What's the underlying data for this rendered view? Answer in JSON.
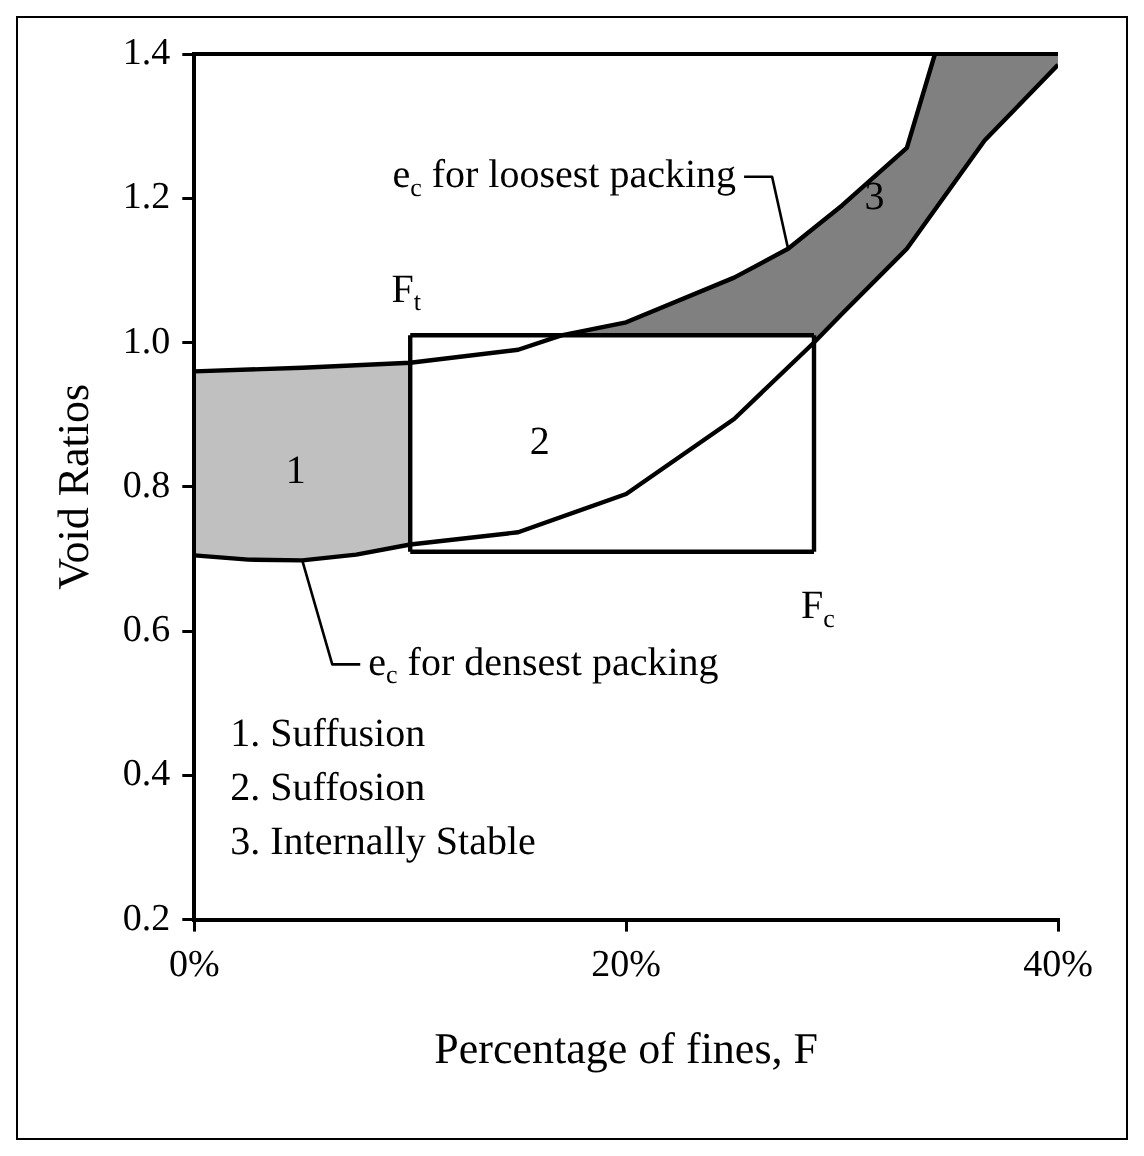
{
  "chart_data": {
    "type": "line",
    "xlabel": "Percentage of fines, F",
    "ylabel": "Void Ratios",
    "xlim": [
      0,
      40
    ],
    "xticks": [
      {
        "value": 0,
        "label": "0%"
      },
      {
        "value": 20,
        "label": "20%"
      },
      {
        "value": 40,
        "label": "40%"
      }
    ],
    "ylim": [
      0.2,
      1.4
    ],
    "yticks": [
      0.2,
      0.4,
      0.6,
      0.8,
      {
        "value": 1.0,
        "label": "1.0"
      },
      1.2,
      1.4
    ],
    "grid": false,
    "legend": false,
    "marker": "none",
    "line_style": "solid",
    "series": [
      {
        "color": "#000000",
        "x": [
          0,
          5,
          10,
          15,
          17,
          20,
          25,
          27.5,
          30,
          33,
          34.3
        ],
        "values": [
          0.96,
          0.965,
          0.972,
          0.99,
          1.01,
          1.028,
          1.09,
          1.13,
          1.19,
          1.27,
          1.4
        ]
      },
      {
        "color": "#000000",
        "x": [
          0,
          2.5,
          5,
          7.5,
          10,
          15,
          20,
          25,
          28.7,
          30,
          33,
          36.6,
          40
        ],
        "values": [
          0.705,
          0.699,
          0.698,
          0.706,
          0.72,
          0.737,
          0.79,
          0.894,
          1.0,
          1.04,
          1.13,
          1.28,
          1.385
        ]
      },
      {
        "color": "#000000",
        "x": [
          10,
          28.7
        ],
        "values": [
          1.01,
          1.01
        ]
      },
      {
        "color": "#000000",
        "x": [
          10,
          28.7
        ],
        "values": [
          0.71,
          0.71
        ]
      }
    ],
    "annotations": [
      {
        "text": "e$_{c}$ for loosest packing",
        "x": 27.5,
        "y": 1.13
      },
      {
        "text": "e$_{c}$ for densest packing",
        "x": 5,
        "y": 0.698
      },
      {
        "text": "F$_{t}$",
        "x": 10,
        "y": 1.01
      },
      {
        "text": "F$_{c}$",
        "x": 28.7,
        "y": 0.71
      },
      "1",
      "2",
      "3",
      "1. Suffusion",
      "2. Suffosion",
      "3. Internally Stable"
    ]
  }
}
